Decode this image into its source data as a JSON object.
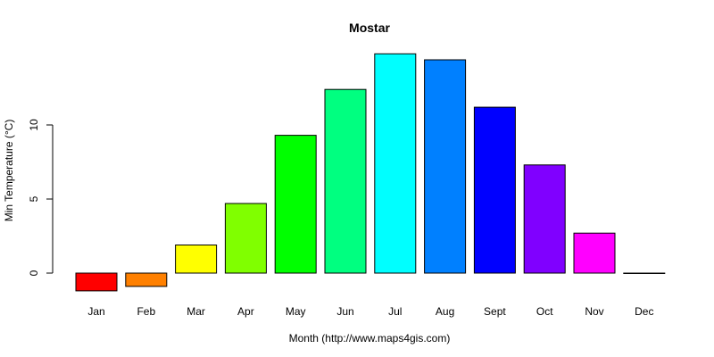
{
  "chart_data": {
    "type": "bar",
    "title": "Mostar",
    "xlabel": "Month (http://www.maps4gis.com)",
    "ylabel": "Min Temperature (°C)",
    "categories": [
      "Jan",
      "Feb",
      "Mar",
      "Apr",
      "May",
      "Jun",
      "Jul",
      "Aug",
      "Sept",
      "Oct",
      "Nov",
      "Dec"
    ],
    "values": [
      -1.2,
      -0.9,
      1.9,
      4.7,
      9.3,
      12.4,
      14.8,
      14.4,
      11.2,
      7.3,
      2.7,
      0.0
    ],
    "colors": [
      "#FF0000",
      "#FF8000",
      "#FFFF00",
      "#80FF00",
      "#00FF00",
      "#00FF80",
      "#00FFFF",
      "#0080FF",
      "#0000FF",
      "#8000FF",
      "#FF00FF",
      "#FF0080"
    ],
    "yticks": [
      0,
      5,
      10
    ],
    "ylim": [
      -1.2,
      14.8
    ],
    "grid": false,
    "legend": "none"
  }
}
